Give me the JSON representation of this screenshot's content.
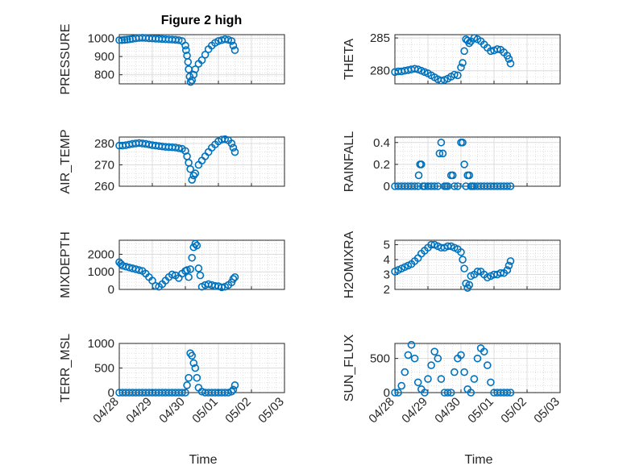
{
  "figure": {
    "title": "Figure 2 high",
    "xlabel": "Time",
    "x_tick_labels": [
      "04/28",
      "04/29",
      "04/30",
      "05/01",
      "05/02",
      "05/03"
    ],
    "marker_color": "#0072BD",
    "grid": "on (major and minor)"
  },
  "chart_data": [
    {
      "type": "scatter",
      "position": "row1-left",
      "ylabel": "PRESSURE",
      "title": "Figure 2 high",
      "xlim": [
        "04/28",
        "05/03"
      ],
      "ylim": [
        750,
        1020
      ],
      "yticks": [
        800,
        900,
        1000
      ],
      "x": [
        0.0,
        0.08,
        0.16,
        0.24,
        0.32,
        0.4,
        0.5,
        0.6,
        0.7,
        0.8,
        0.9,
        1.0,
        1.1,
        1.2,
        1.3,
        1.4,
        1.5,
        1.6,
        1.7,
        1.8,
        1.9,
        2.0,
        2.02,
        2.05,
        2.08,
        2.1,
        2.13,
        2.16,
        2.2,
        2.25,
        2.3,
        2.4,
        2.5,
        2.6,
        2.7,
        2.8,
        2.9,
        3.0,
        3.1,
        3.2,
        3.3,
        3.4,
        3.45,
        3.5
      ],
      "y": [
        990,
        990,
        992,
        993,
        995,
        997,
        1000,
        1002,
        1003,
        1002,
        1000,
        999,
        998,
        997,
        996,
        995,
        994,
        993,
        992,
        990,
        985,
        960,
        935,
        905,
        870,
        830,
        790,
        760,
        770,
        800,
        830,
        860,
        880,
        910,
        940,
        960,
        975,
        985,
        990,
        995,
        992,
        985,
        960,
        935
      ]
    },
    {
      "type": "scatter",
      "position": "row1-right",
      "ylabel": "THETA",
      "xlim": [
        "04/28",
        "05/03"
      ],
      "ylim": [
        278,
        285.5
      ],
      "yticks": [
        280,
        285
      ],
      "x": [
        0.0,
        0.1,
        0.2,
        0.3,
        0.4,
        0.5,
        0.6,
        0.7,
        0.8,
        0.9,
        1.0,
        1.1,
        1.2,
        1.3,
        1.4,
        1.5,
        1.6,
        1.7,
        1.8,
        1.9,
        2.0,
        2.05,
        2.1,
        2.15,
        2.2,
        2.25,
        2.3,
        2.4,
        2.5,
        2.6,
        2.7,
        2.8,
        2.9,
        3.0,
        3.1,
        3.2,
        3.3,
        3.4,
        3.45,
        3.5
      ],
      "y": [
        279.8,
        279.9,
        279.9,
        280.0,
        280.1,
        280.2,
        280.3,
        280.2,
        280.0,
        279.8,
        279.6,
        279.3,
        279.0,
        278.7,
        278.5,
        278.6,
        278.8,
        279.1,
        279.4,
        279.3,
        280.5,
        281.2,
        283.0,
        284.8,
        284.6,
        284.2,
        284.5,
        285.0,
        284.8,
        284.5,
        284.0,
        283.5,
        283.0,
        283.1,
        283.3,
        283.2,
        282.8,
        282.3,
        281.8,
        281.1
      ]
    },
    {
      "type": "scatter",
      "position": "row2-left",
      "ylabel": "AIR_TEMP",
      "xlim": [
        "04/28",
        "05/03"
      ],
      "ylim": [
        260,
        283
      ],
      "yticks": [
        260,
        270,
        280
      ],
      "x": [
        0.0,
        0.1,
        0.2,
        0.3,
        0.4,
        0.5,
        0.6,
        0.7,
        0.8,
        0.9,
        1.0,
        1.1,
        1.2,
        1.3,
        1.4,
        1.5,
        1.6,
        1.7,
        1.8,
        1.9,
        2.0,
        2.05,
        2.1,
        2.15,
        2.2,
        2.25,
        2.3,
        2.4,
        2.5,
        2.6,
        2.7,
        2.8,
        2.9,
        3.0,
        3.1,
        3.2,
        3.3,
        3.4,
        3.45,
        3.5
      ],
      "y": [
        279,
        279,
        279.2,
        279.5,
        279.8,
        280,
        280.2,
        280,
        279.8,
        279.5,
        279.2,
        279,
        278.8,
        278.6,
        278.4,
        278.3,
        278.2,
        278.1,
        277.8,
        277.5,
        276.5,
        274,
        271,
        268,
        263,
        265,
        266,
        270,
        272,
        274,
        276,
        278,
        279.5,
        281,
        281.8,
        282,
        281.5,
        280,
        278,
        276
      ]
    },
    {
      "type": "scatter",
      "position": "row2-right",
      "ylabel": "RAINFALL",
      "xlim": [
        "04/28",
        "05/03"
      ],
      "ylim": [
        0,
        0.45
      ],
      "yticks": [
        0,
        0.2,
        0.4
      ],
      "x": [
        0.0,
        0.1,
        0.2,
        0.3,
        0.4,
        0.5,
        0.6,
        0.7,
        0.72,
        0.76,
        0.8,
        0.85,
        0.9,
        1.0,
        1.1,
        1.2,
        1.3,
        1.35,
        1.4,
        1.45,
        1.5,
        1.55,
        1.6,
        1.7,
        1.75,
        1.8,
        1.9,
        2.0,
        2.05,
        2.1,
        2.15,
        2.2,
        2.25,
        2.3,
        2.35,
        2.4,
        2.5,
        2.6,
        2.7,
        2.8,
        2.9,
        3.0,
        3.1,
        3.2,
        3.3,
        3.4,
        3.5
      ],
      "y": [
        0,
        0,
        0,
        0,
        0,
        0,
        0,
        0,
        0.1,
        0.2,
        0.2,
        0,
        0,
        0,
        0,
        0,
        0,
        0.3,
        0.4,
        0.3,
        0,
        0,
        0,
        0.1,
        0.1,
        0,
        0,
        0.4,
        0.4,
        0.2,
        0,
        0.1,
        0.1,
        0,
        0,
        0,
        0,
        0,
        0,
        0,
        0,
        0,
        0,
        0,
        0,
        0,
        0
      ]
    },
    {
      "type": "scatter",
      "position": "row3-left",
      "ylabel": "MIXDEPTH",
      "xlim": [
        "04/28",
        "05/03"
      ],
      "ylim": [
        0,
        2800
      ],
      "yticks": [
        0,
        1000,
        2000
      ],
      "x": [
        0.0,
        0.05,
        0.1,
        0.2,
        0.3,
        0.4,
        0.5,
        0.6,
        0.7,
        0.8,
        0.9,
        1.0,
        1.1,
        1.2,
        1.3,
        1.4,
        1.5,
        1.6,
        1.7,
        1.8,
        1.9,
        2.0,
        2.05,
        2.1,
        2.15,
        2.2,
        2.25,
        2.3,
        2.35,
        2.4,
        2.45,
        2.5,
        2.6,
        2.7,
        2.8,
        2.9,
        3.0,
        3.1,
        3.2,
        3.3,
        3.4,
        3.45,
        3.5
      ],
      "y": [
        1550,
        1450,
        1350,
        1300,
        1250,
        1200,
        1150,
        1100,
        1050,
        900,
        700,
        500,
        200,
        150,
        300,
        500,
        700,
        850,
        800,
        650,
        900,
        1050,
        1100,
        700,
        1150,
        1800,
        2400,
        2600,
        2500,
        1200,
        800,
        150,
        250,
        300,
        250,
        200,
        180,
        120,
        150,
        250,
        400,
        600,
        700
      ]
    },
    {
      "type": "scatter",
      "position": "row3-right",
      "ylabel": "H2OMIXRA",
      "xlim": [
        "04/28",
        "05/03"
      ],
      "ylim": [
        2,
        5.3
      ],
      "yticks": [
        2,
        3,
        4,
        5
      ],
      "x": [
        0.0,
        0.1,
        0.2,
        0.3,
        0.4,
        0.5,
        0.6,
        0.7,
        0.8,
        0.9,
        1.0,
        1.1,
        1.2,
        1.3,
        1.4,
        1.5,
        1.6,
        1.7,
        1.8,
        1.9,
        2.0,
        2.05,
        2.1,
        2.15,
        2.2,
        2.25,
        2.3,
        2.4,
        2.5,
        2.6,
        2.7,
        2.8,
        2.9,
        3.0,
        3.1,
        3.2,
        3.3,
        3.4,
        3.45,
        3.5
      ],
      "y": [
        3.2,
        3.3,
        3.4,
        3.5,
        3.6,
        3.7,
        3.9,
        4.1,
        4.4,
        4.6,
        4.8,
        5.0,
        5.0,
        4.9,
        4.8,
        4.8,
        4.9,
        4.9,
        4.8,
        4.7,
        4.5,
        4.0,
        3.4,
        2.4,
        2.1,
        2.3,
        2.9,
        3.0,
        3.2,
        3.2,
        3.0,
        2.8,
        2.9,
        3.0,
        3.0,
        3.1,
        3.1,
        3.3,
        3.6,
        3.9
      ]
    },
    {
      "type": "scatter",
      "position": "row4-left",
      "ylabel": "TERR_MSL",
      "xlim": [
        "04/28",
        "05/03"
      ],
      "ylim": [
        0,
        1000
      ],
      "yticks": [
        0,
        500,
        1000
      ],
      "x": [
        0.0,
        0.1,
        0.2,
        0.3,
        0.4,
        0.5,
        0.6,
        0.7,
        0.8,
        0.9,
        1.0,
        1.1,
        1.2,
        1.3,
        1.4,
        1.5,
        1.6,
        1.7,
        1.8,
        1.9,
        2.0,
        2.05,
        2.1,
        2.15,
        2.2,
        2.25,
        2.3,
        2.35,
        2.4,
        2.5,
        2.6,
        2.7,
        2.8,
        2.9,
        3.0,
        3.1,
        3.2,
        3.3,
        3.4,
        3.45,
        3.5
      ],
      "y": [
        0,
        0,
        0,
        0,
        0,
        0,
        0,
        0,
        0,
        0,
        0,
        0,
        0,
        0,
        0,
        0,
        0,
        0,
        0,
        0,
        0,
        150,
        300,
        800,
        750,
        600,
        500,
        300,
        100,
        20,
        0,
        0,
        0,
        0,
        0,
        0,
        0,
        0,
        20,
        60,
        150
      ]
    },
    {
      "type": "scatter",
      "position": "row4-right",
      "ylabel": "SUN_FLUX",
      "xlim": [
        "04/28",
        "05/03"
      ],
      "ylim": [
        0,
        720
      ],
      "yticks": [
        0,
        500
      ],
      "x": [
        0.0,
        0.1,
        0.2,
        0.3,
        0.4,
        0.5,
        0.6,
        0.7,
        0.8,
        0.9,
        1.0,
        1.1,
        1.2,
        1.3,
        1.4,
        1.5,
        1.6,
        1.7,
        1.8,
        1.9,
        2.0,
        2.1,
        2.2,
        2.3,
        2.4,
        2.5,
        2.6,
        2.7,
        2.8,
        2.9,
        3.0,
        3.1,
        3.2,
        3.3,
        3.4,
        3.5
      ],
      "y": [
        0,
        0,
        100,
        300,
        550,
        700,
        500,
        150,
        50,
        0,
        200,
        400,
        600,
        500,
        200,
        0,
        0,
        0,
        300,
        500,
        550,
        300,
        50,
        0,
        200,
        500,
        650,
        600,
        400,
        150,
        0,
        0,
        0,
        0,
        0,
        0
      ]
    }
  ]
}
